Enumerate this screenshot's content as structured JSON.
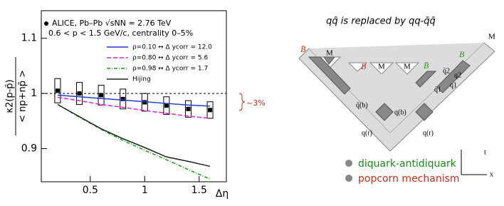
{
  "chart_data": {
    "type": "line",
    "ylabel": {
      "numerator": "κ2(p-p̄)",
      "denominator": "< np+np̄ >"
    },
    "xlabel": "Δη",
    "subtitle": "0.6 < p < 1.5 GeV/c, centrality 0–5%",
    "annotation": "~3%",
    "reference_line": 1,
    "x": [
      0.2,
      0.4,
      0.6,
      0.8,
      1.0,
      1.2,
      1.4,
      1.6
    ],
    "xlim": [
      0.05,
      1.75
    ],
    "xticks": [
      0.5,
      1,
      1.5
    ],
    "ylim": [
      0.84,
      1.15
    ],
    "yticks": [
      0.9,
      1,
      1.1
    ],
    "series": [
      {
        "name": "ALICE, Pb–Pb √sNN = 2.76 TeV",
        "type": "points",
        "color": "#000000",
        "values": [
          1.005,
          1.0,
          0.997,
          0.99,
          0.984,
          0.978,
          0.972,
          0.97
        ],
        "errors": [
          0.022,
          0.02,
          0.018,
          0.018,
          0.016,
          0.016,
          0.015,
          0.015
        ]
      },
      {
        "name": "ρ=0.10 ↔ Δ ycorr = 12.0",
        "color": "#1f3fd6",
        "dash": "solid",
        "values": [
          0.997,
          0.994,
          0.991,
          0.988,
          0.985,
          0.982,
          0.979,
          0.977
        ]
      },
      {
        "name": "ρ=0.80 ↔ Δ ycorr = 5.6",
        "color": "#e020d0",
        "dash": "dashed",
        "values": [
          0.993,
          0.987,
          0.98,
          0.975,
          0.969,
          0.964,
          0.959,
          0.955
        ]
      },
      {
        "name": "ρ=0.98 ↔ Δ ycorr = 1.7",
        "color": "#1a9a1a",
        "dash": "dashdot",
        "values": [
          0.98,
          0.957,
          0.935,
          0.915,
          0.897,
          0.88,
          0.862,
          0.845
        ]
      },
      {
        "name": "Hijing",
        "color": "#222222",
        "dash": "solid",
        "values": [
          0.98,
          0.958,
          0.936,
          0.918,
          0.902,
          0.885,
          0.877,
          0.868
        ]
      }
    ]
  },
  "diagram": {
    "title": "qq̄ is replaced by qq-q̄q̄",
    "labels": [
      "B̄",
      "M",
      "B",
      "M",
      "M",
      "B̄",
      "B",
      "M",
      "q̄2",
      "q2",
      "q̄1",
      "q1",
      "q̄(b)",
      "q(b)",
      "q(r)",
      "q(r)",
      "t",
      "x"
    ],
    "legend": [
      "diquark-antidiquark",
      "popcorn mechanism"
    ]
  }
}
